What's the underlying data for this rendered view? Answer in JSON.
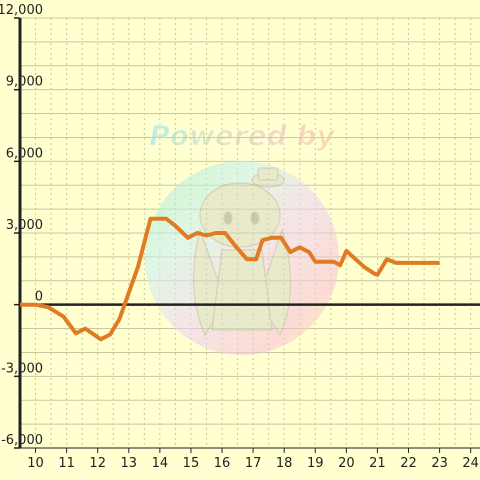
{
  "watermark": {
    "text": "Powered by"
  },
  "chart_data": {
    "type": "line",
    "title": "",
    "xlabel": "",
    "ylabel": "",
    "xlim": [
      9.5,
      24.3
    ],
    "ylim": [
      -6000,
      12000
    ],
    "x_ticks": [
      10,
      11,
      12,
      13,
      14,
      15,
      16,
      17,
      18,
      19,
      20,
      21,
      22,
      23,
      24
    ],
    "x_tick_labels": [
      "10",
      "11",
      "12",
      "13",
      "14",
      "15",
      "16",
      "17",
      "18",
      "19",
      "20",
      "21",
      "22",
      "23",
      "24"
    ],
    "y_ticks": [
      -6000,
      -3000,
      0,
      3000,
      6000,
      9000,
      12000
    ],
    "y_tick_labels": [
      "-6,000",
      "-3,000",
      "0",
      "3,000",
      "6,000",
      "9,000",
      "12,000"
    ],
    "grid": {
      "horizontal_step": 1000,
      "vertical_step": 0.5
    },
    "colors": {
      "background": "#ffffd0",
      "line": "#e07b24",
      "grid": "#c8c8a0",
      "axis": "#222222"
    },
    "series": [
      {
        "points": [
          [
            9.5,
            0
          ],
          [
            10.0,
            0
          ],
          [
            10.4,
            -100
          ],
          [
            10.9,
            -500
          ],
          [
            11.3,
            -1200
          ],
          [
            11.6,
            -1000
          ],
          [
            12.1,
            -1450
          ],
          [
            12.4,
            -1250
          ],
          [
            12.7,
            -600
          ],
          [
            13.0,
            500
          ],
          [
            13.3,
            1600
          ],
          [
            13.7,
            3600
          ],
          [
            14.2,
            3600
          ],
          [
            14.5,
            3300
          ],
          [
            14.9,
            2800
          ],
          [
            15.2,
            3000
          ],
          [
            15.5,
            2900
          ],
          [
            15.8,
            3000
          ],
          [
            16.1,
            3000
          ],
          [
            16.4,
            2500
          ],
          [
            16.8,
            1900
          ],
          [
            17.1,
            1900
          ],
          [
            17.3,
            2700
          ],
          [
            17.6,
            2800
          ],
          [
            17.9,
            2800
          ],
          [
            18.2,
            2200
          ],
          [
            18.5,
            2400
          ],
          [
            18.8,
            2200
          ],
          [
            19.0,
            1800
          ],
          [
            19.6,
            1800
          ],
          [
            19.8,
            1650
          ],
          [
            20.0,
            2250
          ],
          [
            20.3,
            1900
          ],
          [
            20.6,
            1550
          ],
          [
            20.9,
            1300
          ],
          [
            21.0,
            1250
          ],
          [
            21.3,
            1900
          ],
          [
            21.6,
            1750
          ],
          [
            23.0,
            1750
          ]
        ]
      }
    ]
  }
}
